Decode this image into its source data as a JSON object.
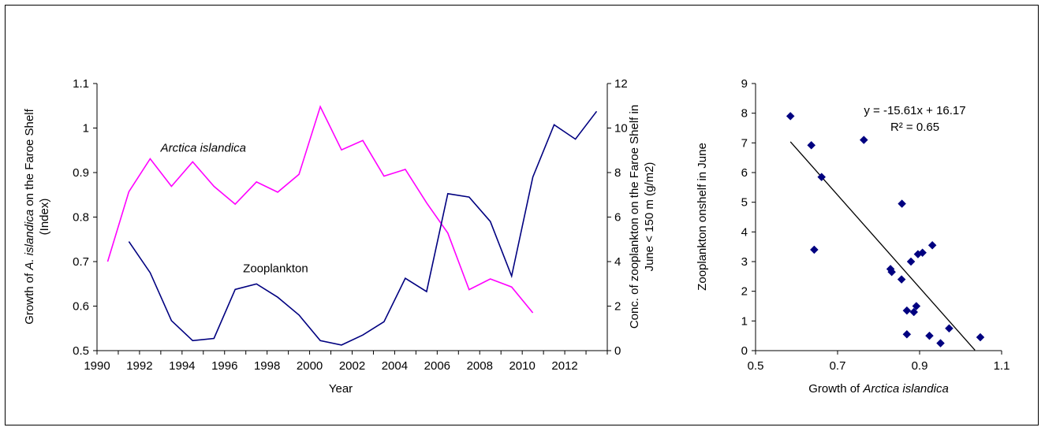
{
  "chart_data": [
    {
      "type": "line",
      "title": "",
      "xlabel": "Year",
      "ylabel_left": {
        "prefix": "Growth of ",
        "italic": "A. islandica",
        "suffix": " on the Faroe Shelf",
        "line2": "(Index)"
      },
      "ylabel_right": {
        "line1": "Conc. of zooplankton on  the Faroe Shelf in",
        "line2": "June < 150 m (g/m2)"
      },
      "xlim": [
        1990,
        2014
      ],
      "ylim_left": [
        0.5,
        1.1
      ],
      "ylim_right": [
        0,
        12
      ],
      "x_ticks": [
        "1990",
        "1992",
        "1994",
        "1996",
        "1998",
        "2000",
        "2002",
        "2004",
        "2006",
        "2008",
        "2010",
        "2012"
      ],
      "y_left_ticks": [
        "0.5",
        "0.6",
        "0.7",
        "0.8",
        "0.9",
        "1",
        "1.1"
      ],
      "y_right_ticks": [
        "0",
        "2",
        "4",
        "6",
        "8",
        "10",
        "12"
      ],
      "grid": false,
      "series": [
        {
          "name": "Arctica islandica",
          "axis": "left",
          "color": "#ff00ff",
          "points": [
            [
              1990.5,
              0.7
            ],
            [
              1991.5,
              0.857
            ],
            [
              1992.5,
              0.931
            ],
            [
              1993.5,
              0.869
            ],
            [
              1994.5,
              0.924
            ],
            [
              1995.5,
              0.869
            ],
            [
              1996.5,
              0.829
            ],
            [
              1997.5,
              0.879
            ],
            [
              1998.5,
              0.856
            ],
            [
              1999.5,
              0.896
            ],
            [
              2000.5,
              1.048
            ],
            [
              2001.5,
              0.951
            ],
            [
              2002.5,
              0.972
            ],
            [
              2003.5,
              0.892
            ],
            [
              2004.5,
              0.907
            ],
            [
              2005.5,
              0.832
            ],
            [
              2006.5,
              0.764
            ],
            [
              2007.5,
              0.637
            ],
            [
              2008.5,
              0.661
            ],
            [
              2009.5,
              0.643
            ],
            [
              2010.5,
              0.585
            ]
          ]
        },
        {
          "name": "Zooplankton",
          "axis": "right",
          "color": "#000080",
          "points": [
            [
              1991.5,
              4.9
            ],
            [
              1992.5,
              3.5
            ],
            [
              1993.5,
              1.35
            ],
            [
              1994.5,
              0.45
            ],
            [
              1995.5,
              0.55
            ],
            [
              1996.5,
              2.75
            ],
            [
              1997.5,
              3.0
            ],
            [
              1998.5,
              2.4
            ],
            [
              1999.5,
              1.6
            ],
            [
              2000.5,
              0.45
            ],
            [
              2001.5,
              0.25
            ],
            [
              2002.5,
              0.7
            ],
            [
              2003.5,
              1.3
            ],
            [
              2004.5,
              3.25
            ],
            [
              2005.5,
              2.65
            ],
            [
              2006.5,
              7.05
            ],
            [
              2007.5,
              6.9
            ],
            [
              2008.5,
              5.8
            ],
            [
              2009.5,
              3.35
            ],
            [
              2010.5,
              7.8
            ],
            [
              2011.5,
              10.15
            ],
            [
              2012.5,
              9.5
            ],
            [
              2013.5,
              10.75
            ]
          ]
        }
      ],
      "annotations": [
        {
          "text": "Arctica islandica",
          "italic": true,
          "x": 1995,
          "axis": "left",
          "y": 0.947
        },
        {
          "text": "Zooplankton",
          "italic": false,
          "x": 1998.4,
          "axis": "left",
          "y": 0.676
        }
      ]
    },
    {
      "type": "scatter",
      "title": "",
      "xlabel": {
        "prefix": "Growth of ",
        "italic": "Arctica islandica"
      },
      "ylabel": "Zooplankton onshelf in June",
      "xlim": [
        0.5,
        1.1
      ],
      "ylim": [
        0,
        9
      ],
      "x_ticks": [
        "0.5",
        "0.7",
        "0.9",
        "1.1"
      ],
      "y_ticks": [
        "0",
        "1",
        "2",
        "3",
        "4",
        "5",
        "6",
        "7",
        "8",
        "9"
      ],
      "grid": false,
      "marker_color": "#000080",
      "points": [
        [
          0.585,
          7.9
        ],
        [
          0.636,
          6.92
        ],
        [
          0.643,
          3.4
        ],
        [
          0.661,
          5.85
        ],
        [
          0.764,
          7.1
        ],
        [
          0.829,
          2.75
        ],
        [
          0.832,
          2.65
        ],
        [
          0.856,
          2.4
        ],
        [
          0.857,
          4.95
        ],
        [
          0.869,
          0.55
        ],
        [
          0.869,
          1.35
        ],
        [
          0.879,
          3.0
        ],
        [
          0.886,
          1.3
        ],
        [
          0.892,
          1.5
        ],
        [
          0.896,
          3.25
        ],
        [
          0.907,
          3.3
        ],
        [
          0.924,
          0.5
        ],
        [
          0.931,
          3.55
        ],
        [
          0.951,
          0.25
        ],
        [
          0.972,
          0.75
        ],
        [
          1.048,
          0.45
        ]
      ],
      "trendline": {
        "slope": -15.61,
        "intercept": 16.17,
        "x_range": [
          0.585,
          1.035
        ],
        "equation": "y = -15.61x + 16.17",
        "r2": "R² = 0.65"
      }
    }
  ]
}
